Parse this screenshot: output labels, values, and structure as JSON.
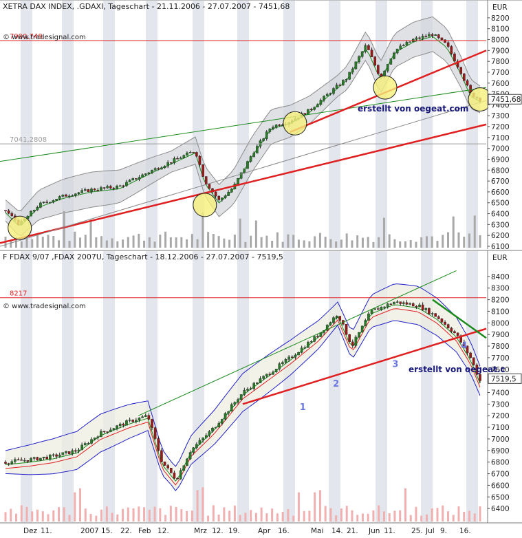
{
  "chart_data": [
    {
      "type": "candlestick",
      "title": "XETRA DAX INDEX, .GDAXI, Tageschart - 21.11.2006 - 27.07.2007 - 7451,68",
      "watermark": "© www.tradesignal.com",
      "annotation": "erstellt von oegeat.com",
      "yunit": "EUR",
      "ylim": [
        6100,
        8250
      ],
      "yticks": [
        "6100",
        "6200",
        "6300",
        "6400",
        "6500",
        "6600",
        "6700",
        "6800",
        "6900",
        "7000",
        "7100",
        "7200",
        "7300",
        "7400",
        "7500",
        "7600",
        "7700",
        "7800",
        "7900",
        "8000",
        "8100",
        "8200"
      ],
      "hlines": [
        {
          "label": "7990,748",
          "value": 7990.748,
          "color": "#e02020"
        },
        {
          "label": "7041,2808",
          "value": 7041.2808,
          "color": "#9a9a9a"
        }
      ],
      "last_price": {
        "label": "7451,68",
        "value": 7451.68
      },
      "price_path": [
        {
          "t": 0,
          "v": 6430
        },
        {
          "t": 0.03,
          "v": 6300
        },
        {
          "t": 0.07,
          "v": 6480
        },
        {
          "t": 0.12,
          "v": 6560
        },
        {
          "t": 0.18,
          "v": 6620
        },
        {
          "t": 0.24,
          "v": 6650
        },
        {
          "t": 0.31,
          "v": 6800
        },
        {
          "t": 0.37,
          "v": 6920
        },
        {
          "t": 0.4,
          "v": 6980
        },
        {
          "t": 0.42,
          "v": 6700
        },
        {
          "t": 0.45,
          "v": 6520
        },
        {
          "t": 0.48,
          "v": 6640
        },
        {
          "t": 0.52,
          "v": 6950
        },
        {
          "t": 0.56,
          "v": 7200
        },
        {
          "t": 0.6,
          "v": 7250
        },
        {
          "t": 0.64,
          "v": 7350
        },
        {
          "t": 0.68,
          "v": 7500
        },
        {
          "t": 0.72,
          "v": 7650
        },
        {
          "t": 0.76,
          "v": 7950
        },
        {
          "t": 0.79,
          "v": 7650
        },
        {
          "t": 0.82,
          "v": 7900
        },
        {
          "t": 0.86,
          "v": 8000
        },
        {
          "t": 0.9,
          "v": 8050
        },
        {
          "t": 0.93,
          "v": 7950
        },
        {
          "t": 0.96,
          "v": 7700
        },
        {
          "t": 0.98,
          "v": 7500
        },
        {
          "t": 1.0,
          "v": 7450
        }
      ],
      "circles": [
        {
          "t": 0.03,
          "v": 6270
        },
        {
          "t": 0.42,
          "v": 6480
        },
        {
          "t": 0.61,
          "v": 7230
        },
        {
          "t": 0.8,
          "v": 7560
        },
        {
          "t": 1.0,
          "v": 7450
        }
      ]
    },
    {
      "type": "candlestick",
      "title": "F FDAX 9/07 ,FDAX 2007U, Tageschart - 18.12.2006 - 27.07.2007 - 7519,5",
      "watermark": "© www.tradesignal.com",
      "annotation": "erstellt von oegeat.c",
      "yunit": "EUR",
      "ylim": [
        6300,
        8500
      ],
      "yticks": [
        "6400",
        "6500",
        "6600",
        "6700",
        "6800",
        "6900",
        "7000",
        "7100",
        "7200",
        "7300",
        "7400",
        "7500",
        "7600",
        "7700",
        "7800",
        "7900",
        "8000",
        "8100",
        "8200",
        "8300",
        "8400"
      ],
      "hlines": [
        {
          "label": "8217",
          "value": 8217,
          "color": "#e02020"
        }
      ],
      "last_price": {
        "label": "7519,5",
        "value": 7519.5
      },
      "wave_labels": [
        "1",
        "2",
        "3",
        "4"
      ],
      "price_path": [
        {
          "t": 0.0,
          "v": 6800
        },
        {
          "t": 0.05,
          "v": 6820
        },
        {
          "t": 0.1,
          "v": 6850
        },
        {
          "t": 0.15,
          "v": 6900
        },
        {
          "t": 0.2,
          "v": 7050
        },
        {
          "t": 0.26,
          "v": 7150
        },
        {
          "t": 0.3,
          "v": 7200
        },
        {
          "t": 0.33,
          "v": 6800
        },
        {
          "t": 0.36,
          "v": 6650
        },
        {
          "t": 0.39,
          "v": 6900
        },
        {
          "t": 0.44,
          "v": 7100
        },
        {
          "t": 0.5,
          "v": 7400
        },
        {
          "t": 0.55,
          "v": 7550
        },
        {
          "t": 0.6,
          "v": 7700
        },
        {
          "t": 0.66,
          "v": 7900
        },
        {
          "t": 0.7,
          "v": 8080
        },
        {
          "t": 0.73,
          "v": 7800
        },
        {
          "t": 0.77,
          "v": 8100
        },
        {
          "t": 0.82,
          "v": 8180
        },
        {
          "t": 0.87,
          "v": 8150
        },
        {
          "t": 0.91,
          "v": 8050
        },
        {
          "t": 0.95,
          "v": 7900
        },
        {
          "t": 0.98,
          "v": 7700
        },
        {
          "t": 1.0,
          "v": 7500
        }
      ]
    }
  ],
  "x_axis": {
    "labels": [
      "Dez",
      "11.",
      "2007",
      "15.",
      "22.",
      "Feb",
      "12.",
      "Mrz",
      "12.",
      "19.",
      "Apr",
      "16.",
      "Mai",
      "14.",
      "21.",
      "Jun",
      "11.",
      "25.",
      "Jul",
      "9.",
      "16."
    ]
  }
}
